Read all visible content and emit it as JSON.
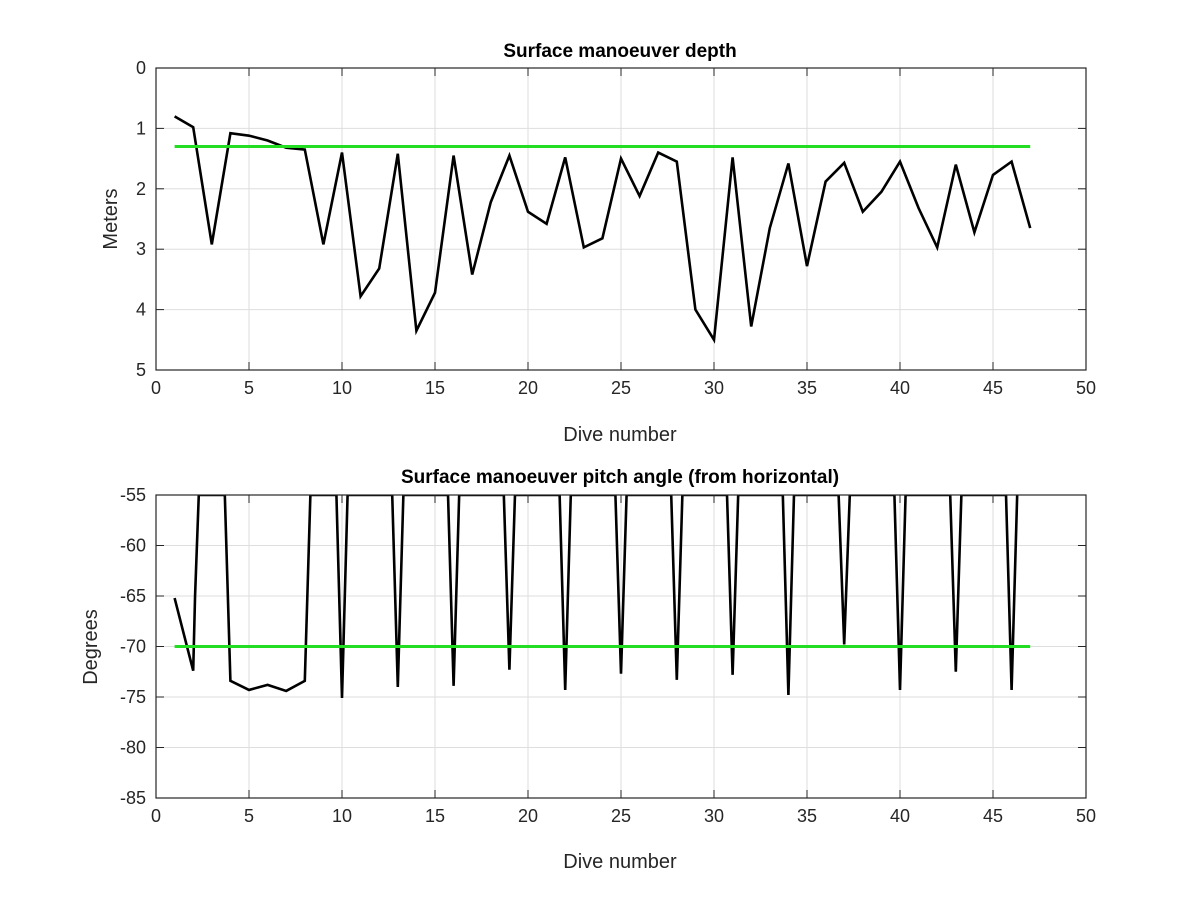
{
  "chart_data": [
    {
      "type": "line",
      "title": "Surface manoeuver depth",
      "xlabel": "Dive number",
      "ylabel": "Meters",
      "xlim": [
        0,
        50
      ],
      "ylim": [
        0,
        5
      ],
      "y_reversed": true,
      "grid": true,
      "xticks": [
        0,
        5,
        10,
        15,
        20,
        25,
        30,
        35,
        40,
        45,
        50
      ],
      "yticks": [
        0,
        1,
        2,
        3,
        4,
        5
      ],
      "series": [
        {
          "color": "#000000",
          "x": [
            1,
            2,
            3,
            4,
            5,
            6,
            7,
            8,
            9,
            10,
            11,
            12,
            13,
            14,
            15,
            16,
            17,
            18,
            19,
            20,
            21,
            22,
            23,
            24,
            25,
            26,
            27,
            28,
            29,
            30,
            31,
            32,
            33,
            34,
            35,
            36,
            37,
            38,
            39,
            40,
            41,
            42,
            43,
            44,
            45,
            46,
            47
          ],
          "y": [
            0.8,
            0.98,
            2.92,
            1.08,
            1.12,
            1.2,
            1.32,
            1.35,
            2.92,
            1.4,
            3.78,
            3.32,
            1.42,
            4.35,
            3.72,
            1.45,
            3.42,
            2.22,
            1.45,
            2.38,
            2.58,
            1.48,
            2.97,
            2.82,
            1.5,
            2.12,
            1.4,
            1.55,
            4.0,
            4.5,
            1.48,
            4.28,
            2.65,
            1.58,
            3.28,
            1.88,
            1.57,
            2.38,
            2.05,
            1.55,
            2.32,
            2.97,
            1.6,
            2.72,
            1.77,
            1.55,
            2.65
          ]
        },
        {
          "color": "#22dd22",
          "x": [
            1,
            47
          ],
          "y": [
            1.3,
            1.3
          ]
        }
      ]
    },
    {
      "type": "line",
      "title": "Surface manoeuver pitch angle (from horizontal)",
      "xlabel": "Dive number",
      "ylabel": "Degrees",
      "xlim": [
        0,
        50
      ],
      "ylim": [
        -85,
        -55
      ],
      "grid": true,
      "xticks": [
        0,
        5,
        10,
        15,
        20,
        25,
        30,
        35,
        40,
        45,
        50
      ],
      "yticks": [
        -55,
        -60,
        -65,
        -70,
        -75,
        -80,
        -85
      ],
      "series": [
        {
          "color": "#000000",
          "x": [
            1,
            2,
            2.1,
            2.3,
            3.7,
            4,
            5,
            6,
            7,
            8,
            8.3,
            9.7,
            10,
            10.3,
            12.7,
            13,
            13.3,
            15.7,
            16,
            16.3,
            18.7,
            19,
            19.3,
            21.7,
            22,
            22.3,
            24.7,
            25,
            25.3,
            27.7,
            28,
            28.3,
            30.7,
            31,
            31.3,
            33.7,
            34,
            34.3,
            36.7,
            37,
            37.3,
            39.7,
            40,
            40.3,
            42.7,
            43,
            43.3,
            45.7,
            46,
            46.3
          ],
          "y": [
            -65.2,
            -72.4,
            -65,
            -55,
            -55,
            -73.4,
            -74.3,
            -73.8,
            -74.4,
            -73.4,
            -55,
            -55,
            -75.1,
            -55,
            -55,
            -74,
            -55,
            -55,
            -73.9,
            -55,
            -55,
            -72.3,
            -55,
            -55,
            -74.3,
            -55,
            -55,
            -72.7,
            -55,
            -55,
            -73.3,
            -55,
            -55,
            -72.8,
            -55,
            -55,
            -74.8,
            -55,
            -55,
            -69.8,
            -55,
            -55,
            -74.3,
            -55,
            -55,
            -72.5,
            -55,
            -55,
            -74.3,
            -55
          ]
        },
        {
          "color": "#22dd22",
          "x": [
            1,
            47
          ],
          "y": [
            -70,
            -70
          ]
        }
      ]
    }
  ]
}
